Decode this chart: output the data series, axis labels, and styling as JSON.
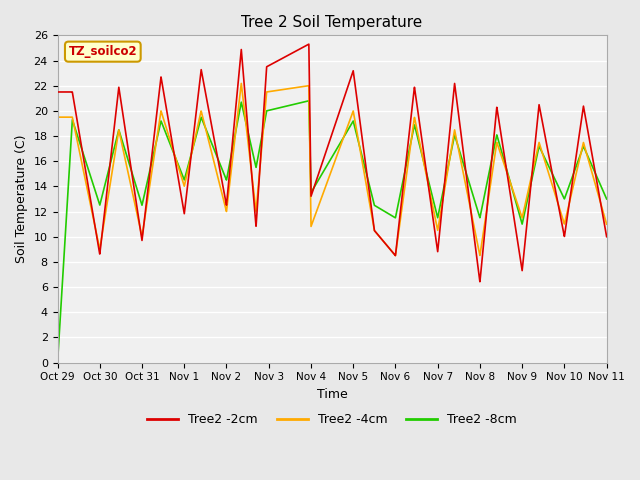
{
  "title": "Tree 2 Soil Temperature",
  "xlabel": "Time",
  "ylabel": "Soil Temperature (C)",
  "annotation": "TZ_soilco2",
  "ylim": [
    0,
    26
  ],
  "xlim_start": 0,
  "xlim_end": 13.0,
  "x_tick_positions": [
    0,
    1,
    2,
    3,
    4,
    5,
    6,
    7,
    8,
    9,
    10,
    11,
    12,
    13
  ],
  "x_tick_labels": [
    "Oct 29",
    "Oct 30",
    "Oct 31",
    "Nov 1",
    "Nov 2",
    "Nov 3",
    "Nov 4",
    "Nov 5",
    "Nov 6",
    "Nov 7",
    "Nov 8",
    "Nov 9",
    "Nov 10",
    "Nov 11"
  ],
  "y_ticks": [
    0,
    2,
    4,
    6,
    8,
    10,
    12,
    14,
    16,
    18,
    20,
    22,
    24,
    26
  ],
  "legend_labels": [
    "Tree2 -2cm",
    "Tree2 -4cm",
    "Tree2 -8cm"
  ],
  "colors": [
    "#dd0000",
    "#ffaa00",
    "#22cc00"
  ],
  "fig_bg": "#e8e8e8",
  "ax_bg": "#f0f0f0",
  "grid_color": "#ffffff",
  "anno_text": "TZ_soilco2",
  "anno_color": "#cc0000",
  "anno_bg": "#ffffcc",
  "anno_edge": "#cc9900",
  "peaks_red": [
    0.35,
    1.45,
    2.45,
    3.4,
    4.35,
    4.95,
    5.95,
    7.0,
    8.45,
    9.4,
    10.4,
    11.4,
    12.45
  ],
  "peaks_orange": [
    0.35,
    1.45,
    2.45,
    3.4,
    4.35,
    4.95,
    5.95,
    7.0,
    8.45,
    9.4,
    10.4,
    11.4,
    12.45
  ],
  "peaks_green": [
    0.35,
    1.45,
    2.45,
    3.4,
    4.35,
    4.95,
    5.95,
    7.0,
    8.45,
    9.4,
    10.4,
    11.4,
    12.45
  ],
  "peak_vals_red": [
    21.5,
    21.9,
    22.7,
    23.3,
    24.9,
    23.5,
    25.3,
    23.2,
    21.9,
    22.2,
    20.3,
    20.5,
    20.4
  ],
  "peak_vals_orange": [
    19.5,
    18.5,
    20.0,
    20.0,
    22.2,
    21.5,
    22.0,
    20.0,
    19.5,
    18.5,
    17.5,
    17.5,
    17.5
  ],
  "peak_vals_green": [
    19.3,
    18.5,
    19.2,
    19.5,
    20.7,
    20.0,
    20.8,
    19.2,
    18.9,
    18.1,
    18.1,
    17.2,
    17.2
  ],
  "troughs_red": [
    1.0,
    2.0,
    3.0,
    4.0,
    4.7,
    6.0,
    7.5,
    8.0,
    9.0,
    10.0,
    11.0,
    12.0,
    13.0
  ],
  "troughs_orange": [
    1.0,
    2.0,
    3.0,
    4.0,
    4.7,
    6.0,
    7.5,
    8.0,
    9.0,
    10.0,
    11.0,
    12.0,
    13.0
  ],
  "troughs_green": [
    1.0,
    2.0,
    3.0,
    4.0,
    4.7,
    6.0,
    7.5,
    8.0,
    9.0,
    10.0,
    11.0,
    12.0,
    13.0
  ],
  "trough_vals_red": [
    8.6,
    9.7,
    11.8,
    12.5,
    10.8,
    13.2,
    10.5,
    8.5,
    8.8,
    6.4,
    7.3,
    10.0,
    10.0
  ],
  "trough_vals_orange": [
    9.0,
    10.0,
    14.0,
    12.0,
    12.0,
    10.8,
    10.5,
    8.5,
    10.5,
    8.5,
    11.5,
    11.0,
    11.0
  ],
  "trough_vals_green": [
    12.5,
    12.5,
    14.5,
    14.5,
    15.5,
    13.5,
    12.5,
    11.5,
    11.5,
    11.5,
    11.0,
    13.0,
    13.0
  ]
}
